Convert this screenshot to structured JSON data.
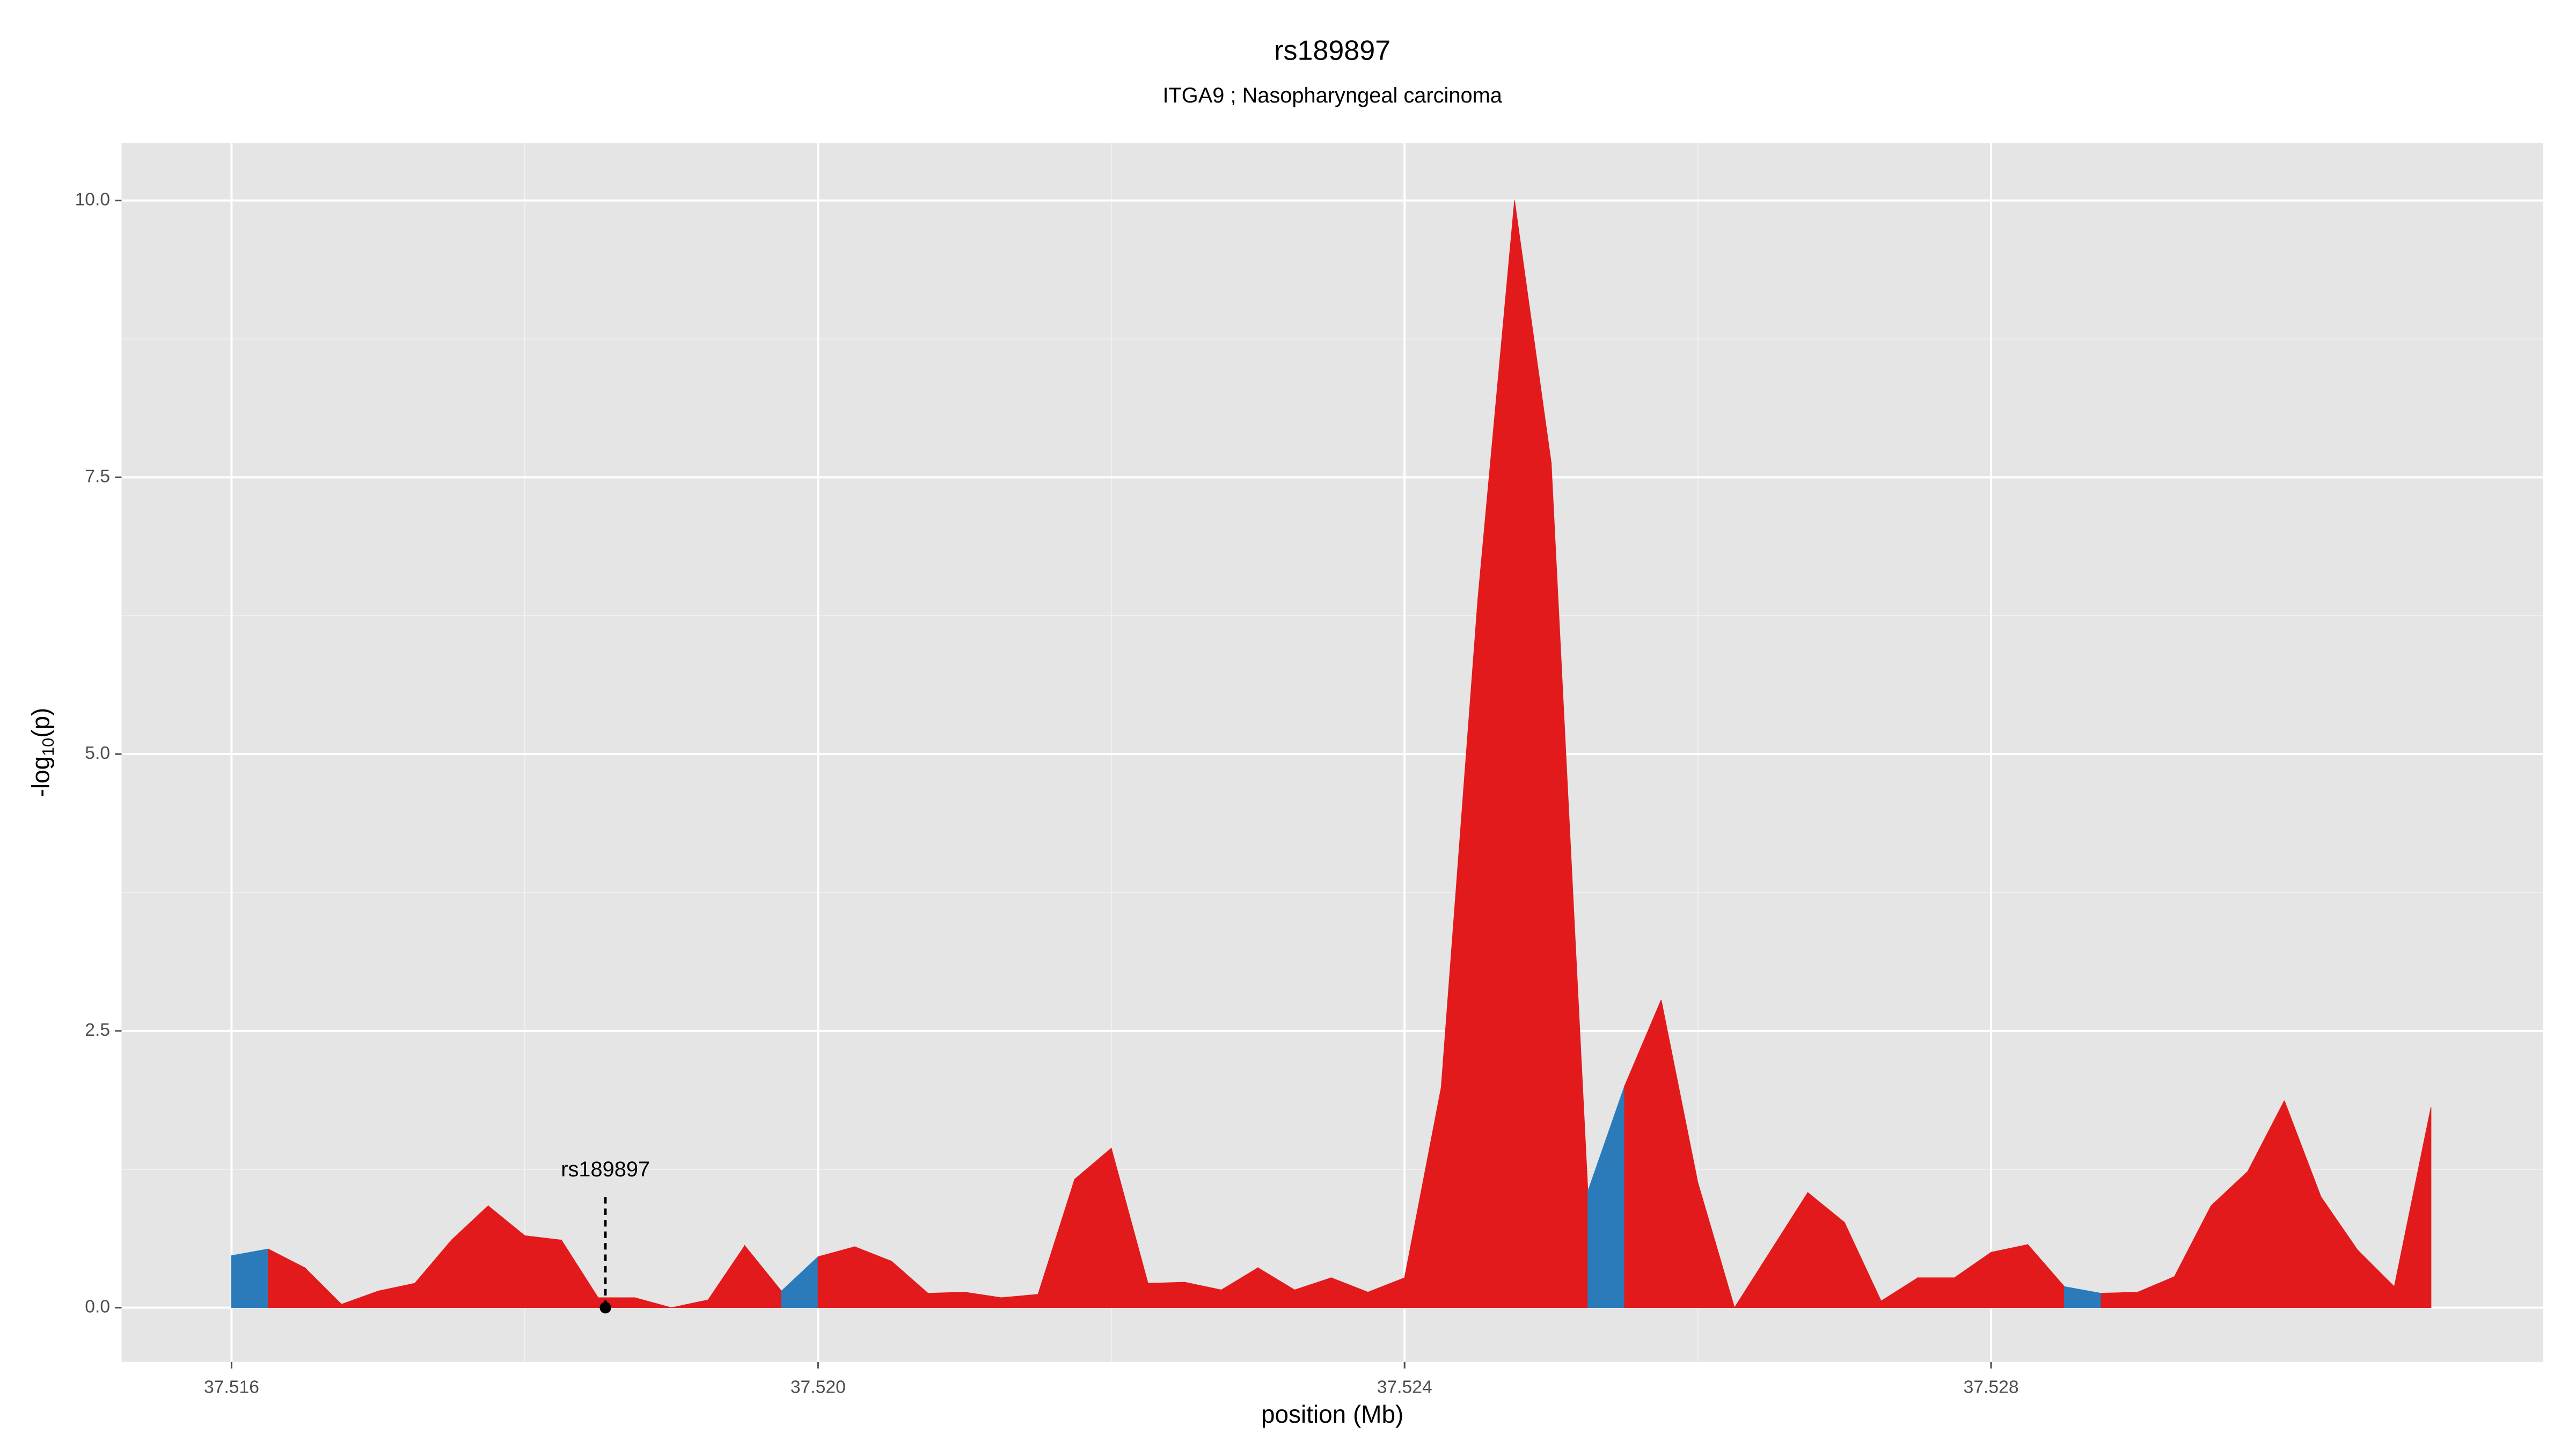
{
  "chart_data": {
    "type": "area",
    "title": "rs189897",
    "subtitle": "ITGA9 ; Nasopharyngeal carcinoma",
    "xlabel": "position (Mb)",
    "ylabel": {
      "prefix": "-log",
      "sub": "10",
      "suffix": "(p)"
    },
    "x": [
      37.516,
      37.51625,
      37.5165,
      37.51675,
      37.517,
      37.51725,
      37.5175,
      37.51775,
      37.518,
      37.51825,
      37.5185,
      37.51875,
      37.519,
      37.51925,
      37.5195,
      37.51975,
      37.52,
      37.52025,
      37.5205,
      37.52075,
      37.521,
      37.52125,
      37.5215,
      37.52175,
      37.522,
      37.52225,
      37.5225,
      37.52275,
      37.523,
      37.52325,
      37.5235,
      37.52375,
      37.524,
      37.52425,
      37.5245,
      37.52475,
      37.525,
      37.52525,
      37.5255,
      37.52575,
      37.526,
      37.52625,
      37.5265,
      37.52675,
      37.527,
      37.52725,
      37.5275,
      37.52775,
      37.528,
      37.52825,
      37.5285,
      37.52875,
      37.529,
      37.52925,
      37.5295,
      37.52975,
      37.53,
      37.53025,
      37.5305,
      37.53075,
      37.531
    ],
    "values": [
      0.47,
      0.53,
      0.36,
      0.03,
      0.15,
      0.22,
      0.61,
      0.92,
      0.65,
      0.61,
      0.09,
      0.09,
      0.0,
      0.07,
      0.56,
      0.15,
      0.46,
      0.55,
      0.42,
      0.13,
      0.14,
      0.09,
      0.12,
      1.16,
      1.44,
      0.22,
      0.23,
      0.16,
      0.36,
      0.16,
      0.27,
      0.14,
      0.27,
      1.99,
      6.4,
      10.0,
      7.63,
      1.05,
      2.0,
      2.78,
      1.13,
      0.0,
      0.52,
      1.04,
      0.77,
      0.06,
      0.27,
      0.27,
      0.5,
      0.57,
      0.19,
      0.13,
      0.14,
      0.28,
      0.92,
      1.23,
      1.87,
      1.0,
      0.52,
      0.19,
      1.81
    ],
    "segment_colors": [
      "#2b7bba",
      "#e31a1c",
      "#e31a1c",
      "#e31a1c",
      "#e31a1c",
      "#e31a1c",
      "#e31a1c",
      "#e31a1c",
      "#e31a1c",
      "#e31a1c",
      "#e31a1c",
      "#e31a1c",
      "#e31a1c",
      "#e31a1c",
      "#e31a1c",
      "#2b7bba",
      "#e31a1c",
      "#e31a1c",
      "#e31a1c",
      "#e31a1c",
      "#e31a1c",
      "#e31a1c",
      "#e31a1c",
      "#e31a1c",
      "#e31a1c",
      "#e31a1c",
      "#e31a1c",
      "#e31a1c",
      "#e31a1c",
      "#e31a1c",
      "#e31a1c",
      "#e31a1c",
      "#e31a1c",
      "#e31a1c",
      "#e31a1c",
      "#e31a1c",
      "#e31a1c",
      "#2b7bba",
      "#e31a1c",
      "#e31a1c",
      "#e31a1c",
      "#e31a1c",
      "#e31a1c",
      "#e31a1c",
      "#e31a1c",
      "#e31a1c",
      "#e31a1c",
      "#e31a1c",
      "#e31a1c",
      "#e31a1c",
      "#2b7bba",
      "#e31a1c",
      "#e31a1c",
      "#e31a1c",
      "#e31a1c",
      "#e31a1c",
      "#e31a1c",
      "#e31a1c",
      "#e31a1c",
      "#e31a1c"
    ],
    "annotation": {
      "text": "rs189897",
      "x": 37.51855,
      "y": 0,
      "line_top": 1.0
    },
    "xlim": [
      37.51525,
      37.531765
    ],
    "ylim": [
      -0.49,
      10.52
    ],
    "xticks": [
      37.516,
      {
        "value": 37.52,
        "label": "37.520"
      },
      37.524,
      37.528
    ],
    "yticks": [
      {
        "value": 0,
        "label": "0.0"
      },
      2.5,
      {
        "value": 5,
        "label": "5.0"
      },
      7.5,
      {
        "value": 10,
        "label": "10.0"
      }
    ],
    "grid": true,
    "minor_grid": true
  }
}
